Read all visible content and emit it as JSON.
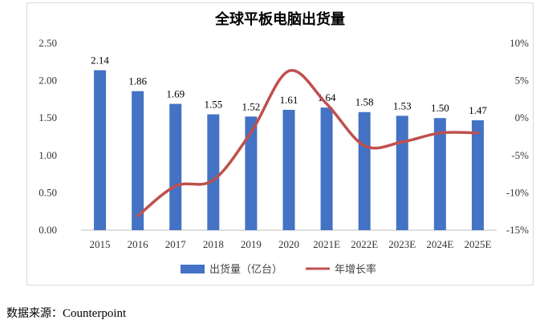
{
  "chart_data": {
    "type": "bar",
    "title": "全球平板电脑出货量",
    "categories": [
      "2015",
      "2016",
      "2017",
      "2018",
      "2019",
      "2020",
      "2021E",
      "2022E",
      "2023E",
      "2024E",
      "2025E"
    ],
    "series": [
      {
        "name": "出货量（亿台）",
        "type": "bar",
        "axis": "left",
        "color": "#4472C4",
        "values": [
          2.14,
          1.86,
          1.69,
          1.55,
          1.52,
          1.61,
          1.64,
          1.58,
          1.53,
          1.5,
          1.47
        ],
        "labels": [
          "2.14",
          "1.86",
          "1.69",
          "1.55",
          "1.52",
          "1.61",
          "1.64",
          "1.58",
          "1.53",
          "1.50",
          "1.47"
        ]
      },
      {
        "name": "年增长率",
        "type": "line",
        "axis": "right",
        "color": "#C0504D",
        "smooth": true,
        "values": [
          null,
          -13.1,
          -9.1,
          -8.3,
          -1.9,
          6.3,
          1.9,
          -3.7,
          -3.2,
          -2.0,
          -2.0
        ]
      }
    ],
    "y_left": {
      "min": 0,
      "max": 2.5,
      "ticks": [
        "0.00",
        "0.50",
        "1.00",
        "1.50",
        "2.00",
        "2.50"
      ]
    },
    "y_right": {
      "min": -15,
      "max": 10,
      "ticks": [
        "-15%",
        "-10%",
        "-5%",
        "0%",
        "5%",
        "10%"
      ]
    },
    "grid": false,
    "legend": "bottom"
  },
  "source": {
    "label": "数据来源：",
    "name": "Counterpoint"
  }
}
